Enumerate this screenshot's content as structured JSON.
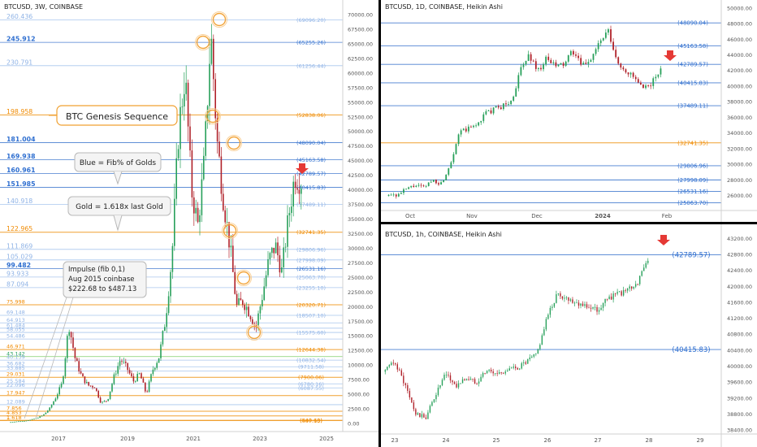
{
  "colors": {
    "blue_line": "#4a7fd0",
    "light_blue_line": "#a9c6ee",
    "gold_line": "#f0a030",
    "gold_text": "#f08a00",
    "green_line": "#7fcf6b",
    "up_candle": "#27a05a",
    "down_candle": "#b0222a",
    "arrow": "#e53935",
    "circle": "#f2a43a",
    "axis_text": "#555555"
  },
  "left_chart": {
    "title": "BTCUSD, 3W, COINBASE",
    "x_ticks": [
      "2017",
      "2019",
      "2021",
      "2023",
      "2025"
    ],
    "y_ticks": [
      "70000.00",
      "67500.00",
      "65000.00",
      "62500.00",
      "60000.00",
      "57500.00",
      "55000.00",
      "52500.00",
      "50000.00",
      "47500.00",
      "45000.00",
      "42500.00",
      "40000.00",
      "37500.00",
      "35000.00",
      "32500.00",
      "30000.00",
      "27500.00",
      "25000.00",
      "22500.00",
      "20000.00",
      "17500.00",
      "15000.00",
      "12500.00",
      "10000.00",
      "7500.00",
      "5000.00",
      "2500.00",
      "0.00"
    ],
    "fib_levels": [
      {
        "ratio": "260.436",
        "price": "(69096.20)",
        "kind": "light_blue"
      },
      {
        "ratio": "245.912",
        "price": "(65255.26)",
        "kind": "blue"
      },
      {
        "ratio": "230.791",
        "price": "(61256.44)",
        "kind": "light_blue"
      },
      {
        "ratio": "198.958",
        "price": "(52838.06)",
        "kind": "gold"
      },
      {
        "ratio": "181.004",
        "price": "(48090.04)",
        "kind": "blue"
      },
      {
        "ratio": "169.938",
        "price": "(45163.58)",
        "kind": "blue"
      },
      {
        "ratio": "160.961",
        "price": "(42789.57)",
        "kind": "blue"
      },
      {
        "ratio": "151.985",
        "price": "(40415.83)",
        "kind": "blue"
      },
      {
        "ratio": "140.918",
        "price": "(37489.11)",
        "kind": "light_blue"
      },
      {
        "ratio": "122.965",
        "price": "(32741.35)",
        "kind": "gold"
      },
      {
        "ratio": "111.869",
        "price": "(29806.96)",
        "kind": "light_blue"
      },
      {
        "ratio": "105.029",
        "price": "(27998.09)",
        "kind": "light_blue"
      },
      {
        "ratio": "99.482",
        "price": "(26531.16)",
        "kind": "blue"
      },
      {
        "ratio": "93.933",
        "price": "(25063.70)",
        "kind": "light_blue"
      },
      {
        "ratio": "87.094",
        "price": "(23255.10)",
        "kind": "light_blue"
      },
      {
        "ratio": "75.998",
        "price": "(20320.71)",
        "kind": "gold"
      },
      {
        "ratio": "69.148",
        "price": "(18507.10)",
        "kind": "light_blue"
      },
      {
        "ratio": "64.913",
        "price": "",
        "kind": "light_blue"
      },
      {
        "ratio": "61.484",
        "price": "",
        "kind": "light_blue"
      },
      {
        "ratio": "58.055",
        "price": "(15575.60)",
        "kind": "light_blue"
      },
      {
        "ratio": "54.486",
        "price": "",
        "kind": "light_blue"
      },
      {
        "ratio": "46.971",
        "price": "(12644.38)",
        "kind": "gold"
      },
      {
        "ratio": "43.142",
        "price": "",
        "kind": "green"
      },
      {
        "ratio": "40.139",
        "price": "(10832.54)",
        "kind": "light_blue"
      },
      {
        "ratio": "36.682",
        "price": "(9711.58)",
        "kind": "light_blue"
      },
      {
        "ratio": "33.885",
        "price": "",
        "kind": "light_blue"
      },
      {
        "ratio": "29.031",
        "price": "(7900.06)",
        "kind": "gold"
      },
      {
        "ratio": "25.584",
        "price": "(6780.16)",
        "kind": "light_blue"
      },
      {
        "ratio": "22.096",
        "price": "(6087.55)",
        "kind": "light_blue"
      },
      {
        "ratio": "17.947",
        "price": "",
        "kind": "gold"
      },
      {
        "ratio": "12.089",
        "price": "",
        "kind": "light_blue"
      },
      {
        "ratio": "7.856",
        "price": "",
        "kind": "gold"
      },
      {
        "ratio": "4.853",
        "price": "",
        "kind": "gold"
      },
      {
        "ratio": "1.618",
        "price": "(487.13)",
        "kind": "gold"
      },
      {
        "ratio": "1",
        "price": "(540.68)",
        "kind": "gold"
      }
    ],
    "annotations": {
      "genesis": "BTC Genesis Sequence",
      "blue_note": "Blue = Fib% of Golds",
      "gold_note": "Gold = 1.618x last Gold",
      "impulse_1": "Impulse (fib 0,1)",
      "impulse_2": "Aug 2015 coinbase",
      "impulse_3": "$222.68 to $487.13"
    }
  },
  "top_right_chart": {
    "title": "BTCUSD, 1D, COINBASE, Heikin Ashi",
    "x_ticks": [
      "Oct",
      "Nov",
      "Dec",
      "2024",
      "Feb"
    ],
    "y_ticks": [
      "50000.00",
      "48000.00",
      "46000.00",
      "44000.00",
      "42000.00",
      "40000.00",
      "38000.00",
      "36000.00",
      "34000.00",
      "32000.00",
      "30000.00",
      "28000.00",
      "26000.00"
    ],
    "levels": [
      {
        "price": "(48090.04)",
        "kind": "blue"
      },
      {
        "price": "(45163.58)",
        "kind": "blue"
      },
      {
        "price": "(42789.57)",
        "kind": "blue"
      },
      {
        "price": "(40415.83)",
        "kind": "blue"
      },
      {
        "price": "(37489.11)",
        "kind": "blue"
      },
      {
        "price": "(32741.35)",
        "kind": "gold"
      },
      {
        "price": "(29806.96)",
        "kind": "blue"
      },
      {
        "price": "(27998.09)",
        "kind": "blue"
      },
      {
        "price": "(26531.16)",
        "kind": "blue"
      },
      {
        "price": "(25063.70)",
        "kind": "blue"
      }
    ]
  },
  "bottom_right_chart": {
    "title": "BTCUSD, 1h, COINBASE, Heikin Ashi",
    "x_ticks": [
      "23",
      "24",
      "25",
      "26",
      "27",
      "28",
      "29"
    ],
    "y_ticks": [
      "43200.00",
      "42800.00",
      "42400.00",
      "42000.00",
      "41600.00",
      "41200.00",
      "40800.00",
      "40400.00",
      "40000.00",
      "39600.00",
      "39200.00",
      "38800.00",
      "38400.00"
    ],
    "levels": [
      {
        "price": "(42789.57)",
        "kind": "blue"
      },
      {
        "price": "(40415.83)",
        "kind": "blue"
      }
    ]
  },
  "chart_data": [
    {
      "type": "line",
      "title": "BTCUSD, 3W, COINBASE",
      "x": [
        "2015-08",
        "2016-01",
        "2016-06",
        "2017-01",
        "2017-06",
        "2017-12",
        "2018-06",
        "2018-12",
        "2019-06",
        "2019-12",
        "2020-03",
        "2020-06",
        "2020-12",
        "2021-04",
        "2021-07",
        "2021-11",
        "2022-06",
        "2022-11",
        "2023-06",
        "2023-12",
        "2024-01"
      ],
      "series": [
        {
          "values": [
            230,
            430,
            670,
            950,
            2500,
            17000,
            6500,
            3500,
            11000,
            7200,
            5000,
            9200,
            29000,
            60000,
            34000,
            67000,
            20000,
            16500,
            30500,
            42500,
            41500
          ]
        }
      ],
      "ylim": [
        0,
        72000
      ]
    },
    {
      "type": "line",
      "title": "BTCUSD, 1D, COINBASE, Heikin Ashi",
      "x": [
        "2023-09-15",
        "2023-10-01",
        "2023-10-15",
        "2023-10-25",
        "2023-11-05",
        "2023-11-20",
        "2023-12-05",
        "2023-12-20",
        "2024-01-01",
        "2024-01-10",
        "2024-01-15",
        "2024-01-23",
        "2024-01-28"
      ],
      "series": [
        {
          "values": [
            26500,
            27000,
            27800,
            34000,
            35500,
            37000,
            43500,
            42500,
            44500,
            46500,
            42500,
            39500,
            42000
          ]
        }
      ],
      "ylim": [
        25000,
        50000
      ]
    },
    {
      "type": "line",
      "title": "BTCUSD, 1h, COINBASE, Heikin Ashi",
      "x": [
        "23",
        "23.5",
        "24",
        "24.5",
        "25",
        "25.5",
        "26",
        "26.3",
        "26.5",
        "27",
        "27.5",
        "28",
        "28.3"
      ],
      "series": [
        {
          "values": [
            39900,
            38700,
            39800,
            39600,
            39900,
            39900,
            40200,
            41200,
            41800,
            41600,
            41600,
            41800,
            42700
          ]
        }
      ],
      "ylim": [
        38300,
        43300
      ]
    }
  ]
}
